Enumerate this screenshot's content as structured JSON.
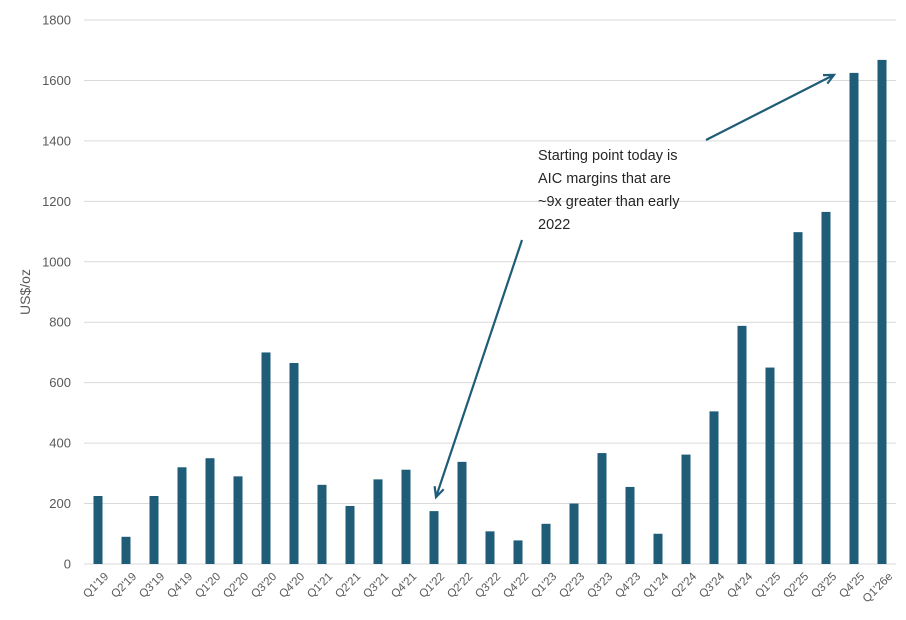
{
  "chart_data": {
    "type": "bar",
    "title": "",
    "xlabel": "",
    "ylabel": "US$/oz",
    "ylim": [
      0,
      1800
    ],
    "yticks": [
      0,
      200,
      400,
      600,
      800,
      1000,
      1200,
      1400,
      1600,
      1800
    ],
    "grid": true,
    "bar_color": "#1f5c78",
    "categories": [
      "Q1'19",
      "Q2'19",
      "Q3'19",
      "Q4'19",
      "Q1'20",
      "Q2'20",
      "Q3'20",
      "Q4'20",
      "Q1'21",
      "Q2'21",
      "Q3'21",
      "Q4'21",
      "Q1'22",
      "Q2'22",
      "Q3'22",
      "Q4'22",
      "Q1'23",
      "Q2'23",
      "Q3'23",
      "Q4'23",
      "Q1'24",
      "Q2'24",
      "Q3'24",
      "Q4'24",
      "Q1'25",
      "Q2'25",
      "Q3'25",
      "Q4'25",
      "Q1'26e"
    ],
    "values": [
      225,
      90,
      225,
      320,
      350,
      290,
      700,
      665,
      262,
      192,
      280,
      312,
      175,
      338,
      108,
      78,
      133,
      200,
      367,
      255,
      100,
      362,
      505,
      788,
      650,
      1098,
      1165,
      1625,
      1668
    ],
    "annotation": {
      "lines": [
        "Starting point today is",
        "AIC margins that are",
        "~9x greater than early",
        "2022"
      ],
      "points_from": "Q1'22",
      "points_to": "Q4'25"
    }
  }
}
